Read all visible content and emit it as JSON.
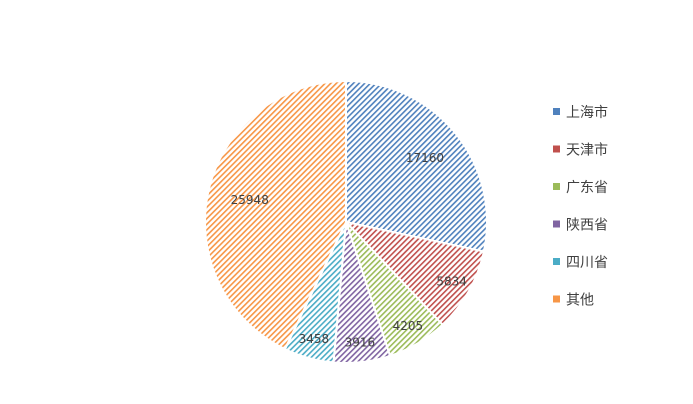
{
  "chart_data": {
    "type": "pie",
    "title": "",
    "categories": [
      "上海市",
      "天津市",
      "广东省",
      "陕西省",
      "四川省",
      "其他"
    ],
    "values": [
      17160,
      5834,
      4205,
      3916,
      3458,
      25948
    ],
    "colors": [
      "#4f81bd",
      "#c0504d",
      "#9bbb59",
      "#8064a2",
      "#4bacc6",
      "#f79646"
    ],
    "fill_pattern": "diagonal-hatch",
    "legend_position": "right",
    "data_labels": true
  }
}
